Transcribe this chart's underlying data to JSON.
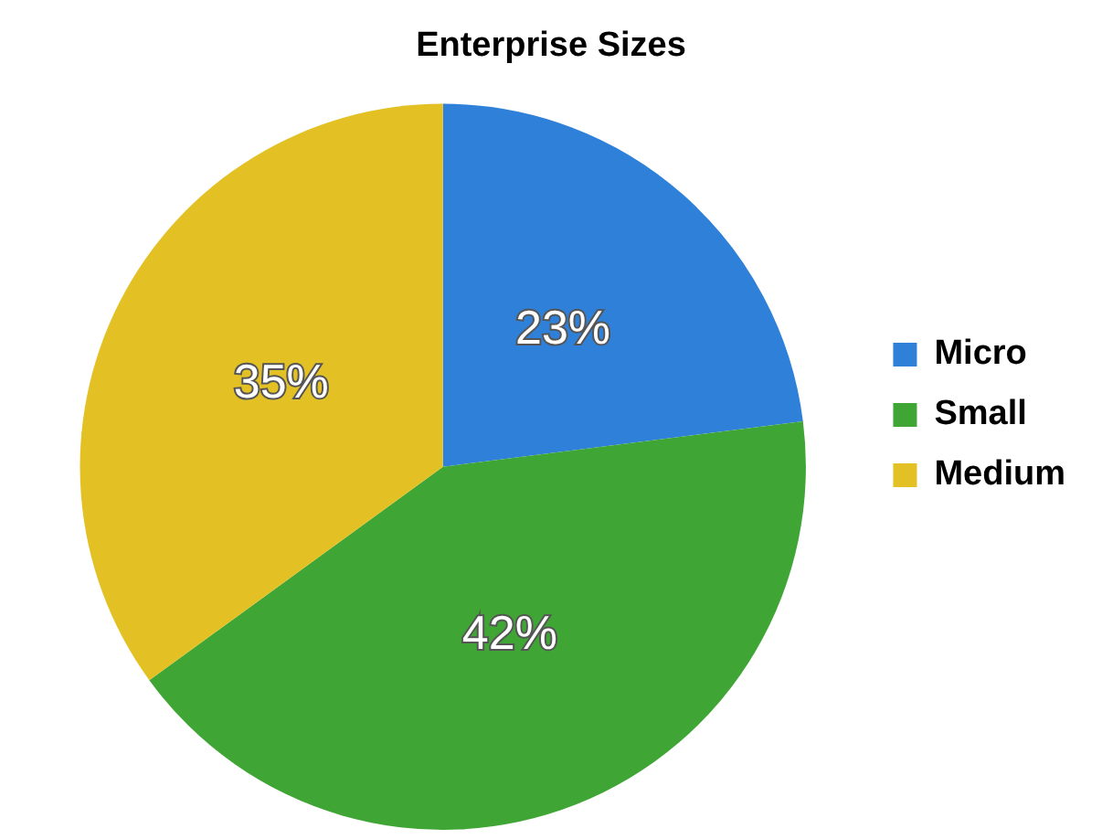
{
  "chart_data": {
    "type": "pie",
    "title": "Enterprise Sizes",
    "categories": [
      "Micro",
      "Small",
      "Medium"
    ],
    "values": [
      23,
      42,
      35
    ],
    "colors": [
      "#2f80d8",
      "#3fa534",
      "#e3c125"
    ],
    "value_labels": [
      "23%",
      "42%",
      "35%"
    ],
    "legend": "right"
  }
}
